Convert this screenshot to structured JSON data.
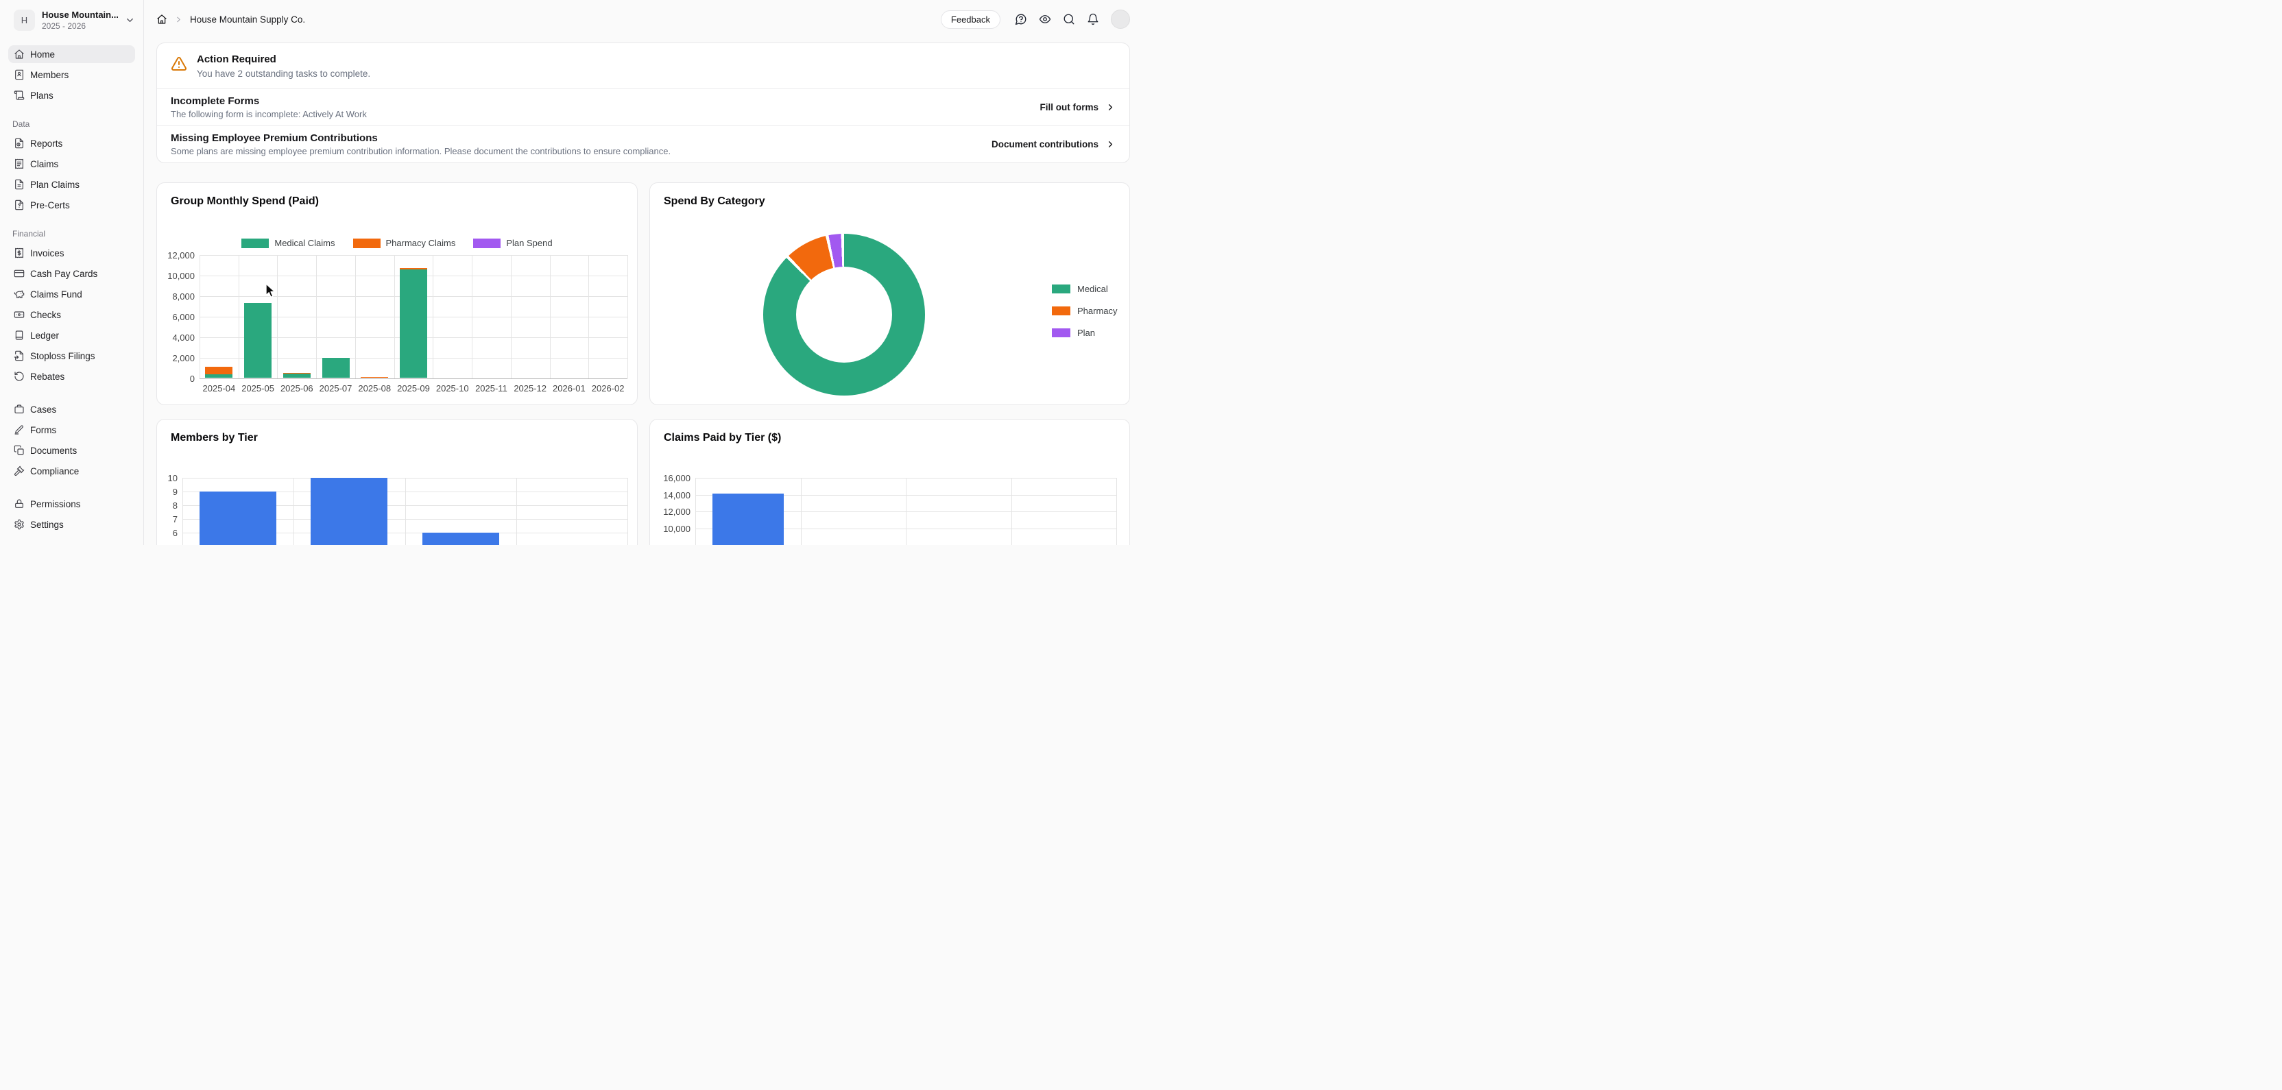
{
  "sidebar": {
    "org": {
      "initial": "H",
      "name": "House Mountain...",
      "period": "2025 - 2026"
    },
    "sections": [
      {
        "label": "",
        "items": [
          {
            "icon": "home",
            "label": "Home",
            "active": true
          },
          {
            "icon": "members",
            "label": "Members"
          },
          {
            "icon": "plans",
            "label": "Plans"
          }
        ]
      },
      {
        "label": "Data",
        "items": [
          {
            "icon": "reports",
            "label": "Reports"
          },
          {
            "icon": "claims",
            "label": "Claims"
          },
          {
            "icon": "plan-claims",
            "label": "Plan Claims"
          },
          {
            "icon": "pre-certs",
            "label": "Pre-Certs"
          }
        ]
      },
      {
        "label": "Financial",
        "items": [
          {
            "icon": "invoices",
            "label": "Invoices"
          },
          {
            "icon": "cash-pay-cards",
            "label": "Cash Pay Cards"
          },
          {
            "icon": "claims-fund",
            "label": "Claims Fund"
          },
          {
            "icon": "checks",
            "label": "Checks"
          },
          {
            "icon": "ledger",
            "label": "Ledger"
          },
          {
            "icon": "stoploss",
            "label": "Stoploss Filings"
          },
          {
            "icon": "rebates",
            "label": "Rebates"
          }
        ]
      },
      {
        "label": "",
        "items": [
          {
            "icon": "cases",
            "label": "Cases"
          },
          {
            "icon": "forms",
            "label": "Forms"
          },
          {
            "icon": "documents",
            "label": "Documents"
          },
          {
            "icon": "compliance",
            "label": "Compliance"
          }
        ]
      },
      {
        "label": "",
        "items": [
          {
            "icon": "permissions",
            "label": "Permissions"
          },
          {
            "icon": "settings",
            "label": "Settings"
          }
        ]
      }
    ]
  },
  "header": {
    "breadcrumb": "House Mountain Supply Co.",
    "feedback_label": "Feedback",
    "icon_buttons": [
      {
        "icon": "help-circle",
        "name": "help-button"
      },
      {
        "icon": "eye",
        "name": "preview-button"
      },
      {
        "icon": "search",
        "name": "search-button"
      },
      {
        "icon": "bell",
        "name": "notifications-button"
      }
    ]
  },
  "alert": {
    "title": "Action Required",
    "subtitle": "You have 2 outstanding tasks to complete.",
    "tasks": [
      {
        "title": "Incomplete Forms",
        "description": "The following form is incomplete: Actively At Work",
        "action": "Fill out forms"
      },
      {
        "title": "Missing Employee Premium Contributions",
        "description": "Some plans are missing employee premium contribution information. Please document the contributions to ensure compliance.",
        "action": "Document contributions"
      }
    ]
  },
  "colors": {
    "medical_green": "#2aa87e",
    "pharmacy_orange": "#f2690d",
    "plan_purple": "#a259f0",
    "tier_blue": "#3c78e8",
    "warning_orange": "#d97908"
  },
  "chart_data": [
    {
      "type": "bar",
      "stacked": true,
      "title": "Group Monthly Spend (Paid)",
      "categories": [
        "2025-04",
        "2025-05",
        "2025-06",
        "2025-07",
        "2025-08",
        "2025-09",
        "2025-10",
        "2025-11",
        "2025-12",
        "2026-01",
        "2026-02"
      ],
      "series": [
        {
          "name": "Medical Claims",
          "color": "#2aa87e",
          "values": [
            350,
            7300,
            420,
            1950,
            0,
            10600,
            0,
            0,
            0,
            0,
            0
          ]
        },
        {
          "name": "Pharmacy Claims",
          "color": "#f2690d",
          "values": [
            750,
            0,
            80,
            0,
            75,
            150,
            0,
            0,
            0,
            0,
            0
          ]
        },
        {
          "name": "Plan Spend",
          "color": "#a259f0",
          "values": [
            0,
            0,
            0,
            0,
            0,
            0,
            0,
            0,
            0,
            0,
            0
          ]
        }
      ],
      "ylim": [
        0,
        12000
      ],
      "yticks": [
        0,
        2000,
        4000,
        6000,
        8000,
        10000,
        12000
      ],
      "legend_position": "top",
      "grid": true
    },
    {
      "type": "pie",
      "subtype": "donut",
      "title": "Spend By Category",
      "slices": [
        {
          "label": "Medical",
          "color": "#2aa87e",
          "percent": 89
        },
        {
          "label": "Pharmacy",
          "color": "#f2690d",
          "percent": 8.5
        },
        {
          "label": "Plan",
          "color": "#a259f0",
          "percent": 2.5
        }
      ],
      "legend_position": "right"
    },
    {
      "type": "bar",
      "title": "Members by Tier",
      "color": "#3c78e8",
      "columns": 4,
      "values": [
        9,
        10,
        6,
        null
      ],
      "yticks": [
        10,
        9,
        8,
        7,
        6
      ],
      "cropped_at_viewport_bottom": true
    },
    {
      "type": "bar",
      "title": "Claims Paid by Tier ($)",
      "color": "#3c78e8",
      "columns": 4,
      "values": [
        14100,
        null,
        null,
        null
      ],
      "yticks": [
        16000,
        14000,
        12000,
        10000
      ],
      "cropped_at_viewport_bottom": true
    }
  ]
}
